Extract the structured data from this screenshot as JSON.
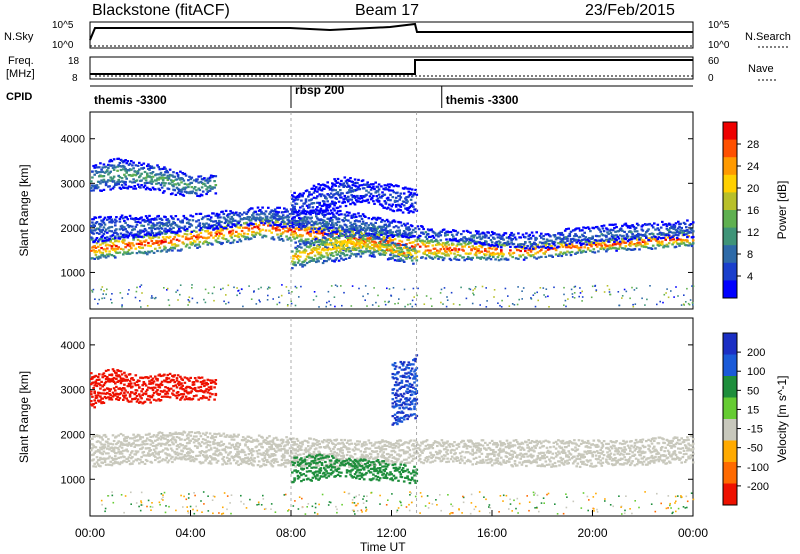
{
  "header": {
    "site": "Blackstone (fitACF)",
    "beam": "Beam 17",
    "date": "23/Feb/2015"
  },
  "strip_labels": {
    "nsky": "N.Sky",
    "nsky_ticks": [
      "10^5",
      "10^0"
    ],
    "nsearch": "N.Search",
    "nsearch_ticks": [
      "10^5",
      "10^0"
    ],
    "freq": "Freq.",
    "freq_unit": "[MHz]",
    "freq_ticks": [
      "18",
      "8"
    ],
    "nave": "Nave",
    "nave_ticks": [
      "60",
      "0"
    ],
    "cpid": "CPID"
  },
  "cpid_segments": [
    {
      "label": "themis -3300",
      "start_hour": 0,
      "end_hour": 8
    },
    {
      "label": "rbsp 200",
      "start_hour": 8,
      "end_hour": 14
    },
    {
      "label": "themis -3300",
      "start_hour": 14,
      "end_hour": 24
    }
  ],
  "power_colorbar": {
    "label": "Power [dB]",
    "ticks": [
      "28",
      "24",
      "20",
      "16",
      "12",
      "8",
      "4"
    ],
    "colors": [
      "#0000ff",
      "#1a3fcc",
      "#2e6aa8",
      "#3f9478",
      "#5fb050",
      "#b8c02a",
      "#ffd000",
      "#ff9a00",
      "#ff5000",
      "#ee0000"
    ]
  },
  "velocity_colorbar": {
    "label": "Velocity [m s^-1]",
    "ticks": [
      "200",
      "100",
      "50",
      "15",
      "-15",
      "-50",
      "-100",
      "-200"
    ],
    "colors": [
      "#1b2fc4",
      "#1a5ad8",
      "#1e8e3c",
      "#66cc33",
      "#c8c8bc",
      "#ffaa00",
      "#ff6a00",
      "#ee1100"
    ]
  },
  "chart_data": [
    {
      "type": "heatmap",
      "name": "power",
      "xlabel": "Time UT",
      "ylabel": "Slant Range [km]",
      "xlim": [
        0,
        24
      ],
      "ylim": [
        180,
        4600
      ],
      "yticks": [
        "1000",
        "2000",
        "3000",
        "4000"
      ],
      "xticks": [
        "00:00",
        "04:00",
        "08:00",
        "12:00",
        "16:00",
        "20:00",
        "00:00"
      ],
      "bands": [
        {
          "x": [
            0,
            24
          ],
          "ylo": [
            1300,
            1500,
            1800,
            1500,
            1300,
            1300,
            1500,
            1600
          ],
          "yhi": [
            1800,
            2000,
            2300,
            2100,
            1800,
            1700,
            1800,
            2000
          ],
          "value": 24
        },
        {
          "x": [
            0,
            24
          ],
          "ylo": [
            1700,
            1900,
            2100,
            1800,
            1800,
            1500,
            1700,
            1800
          ],
          "yhi": [
            2300,
            2300,
            2500,
            2400,
            2000,
            1900,
            2100,
            2200
          ],
          "value": 8
        },
        {
          "x": [
            0,
            5
          ],
          "ylo": [
            2800,
            2900,
            2900,
            2800,
            2700,
            2800
          ],
          "yhi": [
            3400,
            3600,
            3500,
            3400,
            3200,
            3200
          ],
          "value": 12
        },
        {
          "x": [
            8,
            13
          ],
          "ylo": [
            1100,
            1200,
            1300,
            1400,
            1300,
            1200
          ],
          "yhi": [
            1600,
            1800,
            2000,
            1900,
            1700,
            1600
          ],
          "value": 20
        },
        {
          "x": [
            8,
            13
          ],
          "ylo": [
            2200,
            2300,
            2500,
            2600,
            2400,
            2300
          ],
          "yhi": [
            2800,
            3000,
            3200,
            3100,
            3000,
            2900
          ],
          "value": 6
        }
      ]
    },
    {
      "type": "heatmap",
      "name": "velocity",
      "xlabel": "Time UT",
      "ylabel": "Slant Range [km]",
      "xlim": [
        0,
        24
      ],
      "ylim": [
        180,
        4600
      ],
      "yticks": [
        "1000",
        "2000",
        "3000",
        "4000"
      ],
      "xticks": [
        "00:00",
        "04:00",
        "08:00",
        "12:00",
        "16:00",
        "20:00",
        "00:00"
      ],
      "bands": [
        {
          "x": [
            0,
            24
          ],
          "ylo": [
            1300,
            1400,
            1300,
            1300,
            1400,
            1300,
            1300,
            1400
          ],
          "yhi": [
            2000,
            2100,
            2000,
            1900,
            1900,
            1900,
            1900,
            2000
          ],
          "value": 0
        },
        {
          "x": [
            0,
            5
          ],
          "ylo": [
            2600,
            2800,
            2700,
            2800,
            2800,
            2800
          ],
          "yhi": [
            3400,
            3500,
            3300,
            3400,
            3300,
            3300
          ],
          "value": -180
        },
        {
          "x": [
            8,
            13
          ],
          "ylo": [
            900,
            1000,
            1100,
            1000,
            1000,
            900
          ],
          "yhi": [
            1500,
            1600,
            1500,
            1500,
            1400,
            1300
          ],
          "value": 60
        },
        {
          "x": [
            12,
            13
          ],
          "ylo": [
            2200,
            2400
          ],
          "yhi": [
            3600,
            3800
          ],
          "value": 150
        }
      ]
    }
  ]
}
